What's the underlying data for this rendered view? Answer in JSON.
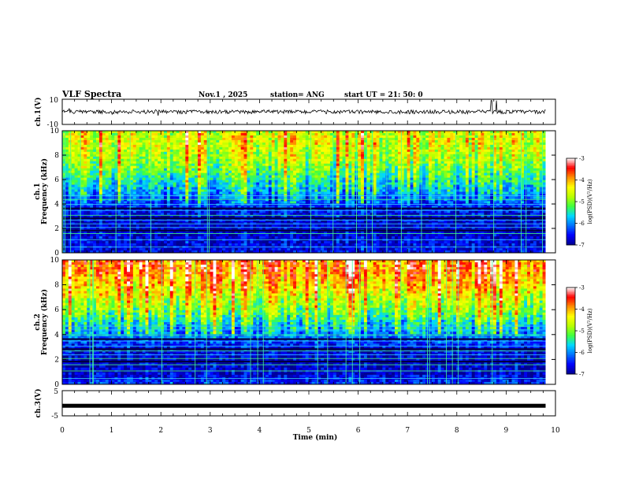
{
  "header": {
    "title": "VLF Spectra",
    "date": "Nov.1  , 2025",
    "station": "station= ANG",
    "start": "start  UT =   21: 50: 0"
  },
  "colorbar": {
    "label": "log(PSD)(V²/Hz)",
    "ticks": [
      "-3",
      "-4",
      "-5",
      "-6",
      "-7"
    ],
    "range": [
      -7,
      -3
    ],
    "colors": [
      "#00008f",
      "#0000ff",
      "#0070ff",
      "#00d8ff",
      "#40ff40",
      "#b8ff00",
      "#ffff00",
      "#ff9000",
      "#ff0000",
      "#ffffff"
    ]
  },
  "chart_data": [
    {
      "type": "line",
      "name": "ch.1 waveform",
      "ylabel": "ch.1(V)",
      "ylim": [
        -10,
        10
      ],
      "y_ticks": [
        "10",
        "-10"
      ],
      "description_values": {
        "baseline": 0,
        "typical_amplitude": 1.5,
        "spikes_near_min": [
          8.7,
          8.8
        ]
      }
    },
    {
      "type": "heatmap",
      "name": "ch.1 spectrogram",
      "ylabel_top": "ch.1",
      "ylabel": "Frequency (kHz)",
      "ylim": [
        0,
        10
      ],
      "y_ticks": [
        "0",
        "2",
        "4",
        "6",
        "8",
        "10"
      ],
      "xlim": [
        0,
        10
      ],
      "profile_freq_khz": [
        0,
        1,
        2,
        3,
        4,
        5,
        6,
        7,
        8,
        9,
        10
      ],
      "profile_log_psd": [
        -6.6,
        -6.7,
        -6.8,
        -6.7,
        -6.3,
        -5.8,
        -5.4,
        -5.0,
        -4.7,
        -4.5,
        -4.5
      ]
    },
    {
      "type": "heatmap",
      "name": "ch.2 spectrogram",
      "ylabel_top": "ch.2",
      "ylabel": "Frequency (kHz)",
      "ylim": [
        0,
        10
      ],
      "y_ticks": [
        "0",
        "2",
        "4",
        "6",
        "8",
        "10"
      ],
      "xlim": [
        0,
        10
      ],
      "profile_freq_khz": [
        0,
        1,
        2,
        3,
        4,
        5,
        6,
        7,
        8,
        9,
        10
      ],
      "profile_log_psd": [
        -6.4,
        -6.8,
        -6.8,
        -6.6,
        -6.0,
        -5.5,
        -5.0,
        -4.6,
        -4.2,
        -3.9,
        -3.8
      ]
    },
    {
      "type": "line",
      "name": "ch.3 waveform",
      "ylabel": "ch.3(V)",
      "ylim": [
        -5,
        5
      ],
      "y_ticks": [
        "5",
        "-5"
      ],
      "description_values": {
        "baseline": -1,
        "typical_amplitude": 0.2
      }
    }
  ],
  "x_axis": {
    "label": "Time (min)",
    "range": [
      0,
      10
    ],
    "end_min": 9.8,
    "ticks": [
      "0",
      "1",
      "2",
      "3",
      "4",
      "5",
      "6",
      "7",
      "8",
      "9",
      "10"
    ]
  }
}
